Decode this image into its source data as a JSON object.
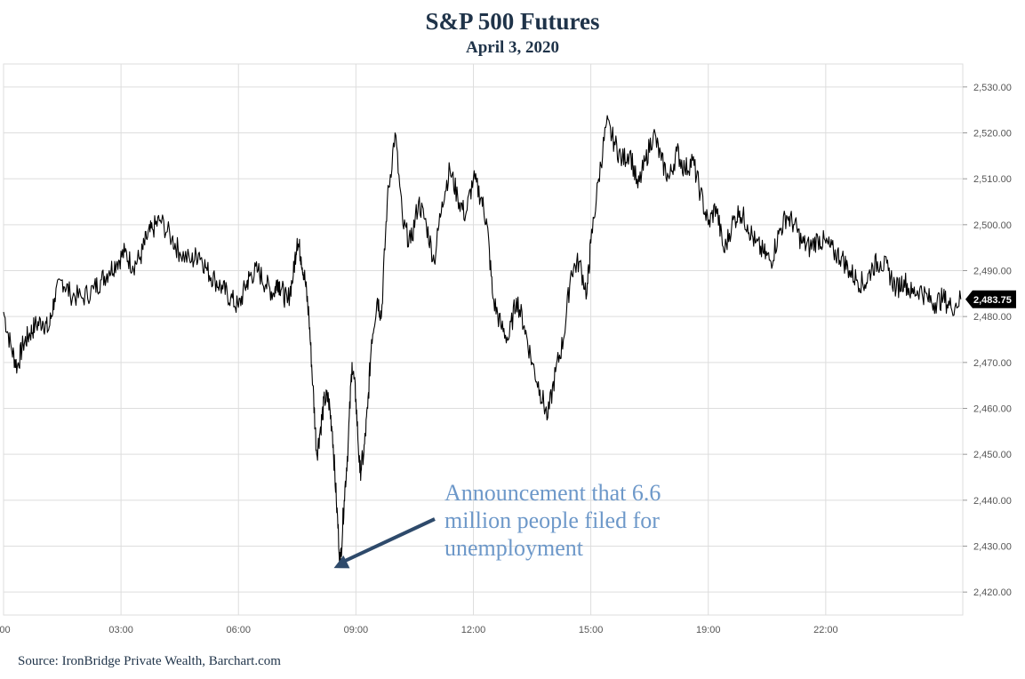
{
  "title": "S&P 500 Futures",
  "subtitle": "April 3, 2020",
  "source": "Source: IronBridge Private Wealth, Barchart.com",
  "colors": {
    "line": "#000000",
    "grid": "#dddddd",
    "title": "#1f3349",
    "annotation": "#6d98c9",
    "arrow": "#2e4a6b",
    "badge": "#000000"
  },
  "chart_data": {
    "type": "line",
    "title": "S&P 500 Futures",
    "subtitle": "April 3, 2020",
    "xlabel": "",
    "ylabel": "",
    "ylim": [
      2415,
      2535
    ],
    "xlim": [
      0,
      24.5
    ],
    "grid": true,
    "legend": "none",
    "y_ticks": [
      2420,
      2430,
      2440,
      2450,
      2460,
      2470,
      2480,
      2490,
      2500,
      2510,
      2520,
      2530
    ],
    "y_tick_labels": [
      "2,420.00",
      "2,430.00",
      "2,440.00",
      "2,450.00",
      "2,460.00",
      "2,470.00",
      "2,480.00",
      "2,490.00",
      "2,500.00",
      "2,510.00",
      "2,520.00",
      "2,530.00"
    ],
    "x_ticks": [
      0,
      3,
      6,
      9,
      12,
      15,
      18,
      21
    ],
    "x_tick_labels": [
      ":00",
      "03:00",
      "06:00",
      "09:00",
      "12:00",
      "15:00",
      "19:00",
      "22:00"
    ],
    "last_value_label": "2,483.75",
    "annotation": {
      "lines": [
        "Announcement that 6.6",
        "million people filed for",
        "unemployment"
      ],
      "points_to": {
        "x": 8.3,
        "y": 2426
      }
    },
    "series": [
      {
        "x": [
          0.0,
          0.2,
          0.35,
          0.5,
          0.65,
          0.8,
          1.0,
          1.15,
          1.3,
          1.5,
          1.7,
          2.0,
          2.3,
          2.5,
          2.7,
          2.9,
          3.1,
          3.3,
          3.5,
          3.65,
          3.8,
          4.0,
          4.3,
          4.5,
          4.8,
          5.0,
          5.2,
          5.4,
          5.6,
          5.8,
          6.0,
          6.2,
          6.3,
          6.5,
          6.7,
          6.9,
          7.0,
          7.1,
          7.25,
          7.4,
          7.5,
          7.6,
          7.7,
          7.8,
          7.9,
          8.0,
          8.1,
          8.2,
          8.3,
          8.4,
          8.5,
          8.6,
          8.7,
          8.8,
          8.9,
          9.0,
          9.1,
          9.2,
          9.3,
          9.4,
          9.55,
          9.65,
          9.8,
          10.0,
          10.2,
          10.4,
          10.6,
          10.8,
          11.0,
          11.2,
          11.4,
          11.6,
          11.8,
          12.0,
          12.2,
          12.35,
          12.5,
          12.7,
          12.9,
          13.1,
          13.3,
          13.5,
          13.7,
          13.9,
          14.1,
          14.3,
          14.5,
          14.7,
          14.9,
          15.0,
          15.2,
          15.4,
          15.6,
          15.8,
          16.0,
          16.2,
          16.4,
          16.6,
          16.8,
          17.0,
          17.2,
          17.4,
          17.6,
          17.8,
          18.0,
          18.2,
          18.4,
          18.6,
          18.8,
          19.0,
          19.2,
          19.4,
          19.6,
          19.8,
          20.0,
          20.2,
          20.4,
          20.6,
          20.8,
          21.0,
          21.2,
          21.4,
          21.6,
          21.8,
          22.0,
          22.2,
          22.4,
          22.6,
          22.8,
          23.0,
          23.2,
          23.4,
          23.6,
          23.8,
          24.0,
          24.2,
          24.45
        ],
        "y": [
          2481,
          2473,
          2469,
          2474,
          2476,
          2478,
          2479,
          2477,
          2484,
          2488,
          2485,
          2484,
          2486,
          2488,
          2490,
          2492,
          2494,
          2491,
          2493,
          2497,
          2499,
          2501,
          2497,
          2494,
          2492,
          2494,
          2490,
          2488,
          2486,
          2484,
          2482,
          2487,
          2489,
          2490,
          2487,
          2485,
          2488,
          2486,
          2483,
          2489,
          2497,
          2493,
          2488,
          2480,
          2465,
          2450,
          2456,
          2462,
          2462,
          2455,
          2440,
          2426,
          2440,
          2452,
          2470,
          2462,
          2446,
          2450,
          2460,
          2475,
          2484,
          2480,
          2505,
          2520,
          2500,
          2496,
          2505,
          2500,
          2492,
          2505,
          2512,
          2506,
          2502,
          2510,
          2506,
          2500,
          2484,
          2478,
          2475,
          2484,
          2478,
          2470,
          2464,
          2458,
          2468,
          2475,
          2490,
          2492,
          2485,
          2496,
          2510,
          2522,
          2518,
          2514,
          2516,
          2508,
          2514,
          2520,
          2514,
          2510,
          2516,
          2512,
          2514,
          2507,
          2500,
          2504,
          2494,
          2500,
          2503,
          2500,
          2496,
          2494,
          2492,
          2498,
          2502,
          2500,
          2496,
          2495,
          2497,
          2496,
          2494,
          2493,
          2490,
          2488,
          2487,
          2491,
          2492,
          2490,
          2486,
          2488,
          2485,
          2486,
          2484,
          2483,
          2484,
          2482,
          2483.75
        ]
      }
    ]
  }
}
